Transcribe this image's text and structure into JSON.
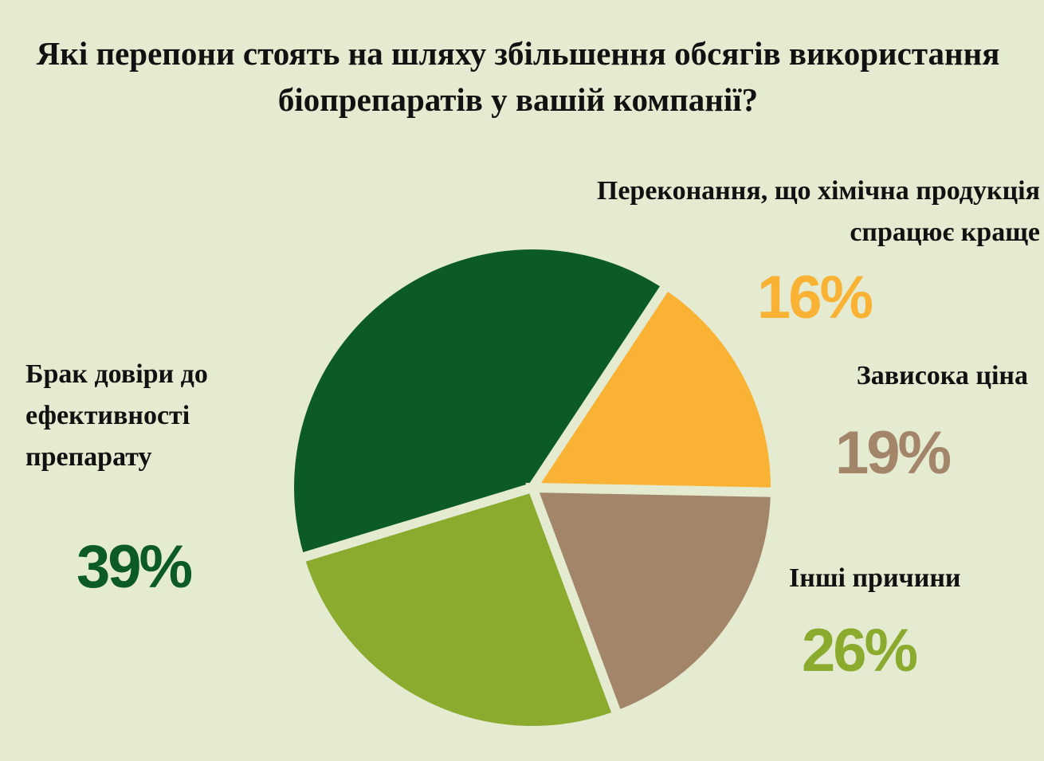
{
  "chart_data": {
    "type": "pie",
    "title": "Які перепони стоять на шляху збільшення обсягів використання біопрепаратів у вашій компанії?",
    "categories": [
      "Брак довіри до ефективності препарату",
      "Переконання, що хімічна продукція спрацює краще",
      "Зависока ціна",
      "Інші причини"
    ],
    "values": [
      39,
      16,
      19,
      26
    ],
    "value_labels": [
      "39%",
      "16%",
      "19%",
      "26%"
    ],
    "colors": [
      "#0b5a28",
      "#f9b233",
      "#a3866a",
      "#8bab2f"
    ]
  }
}
